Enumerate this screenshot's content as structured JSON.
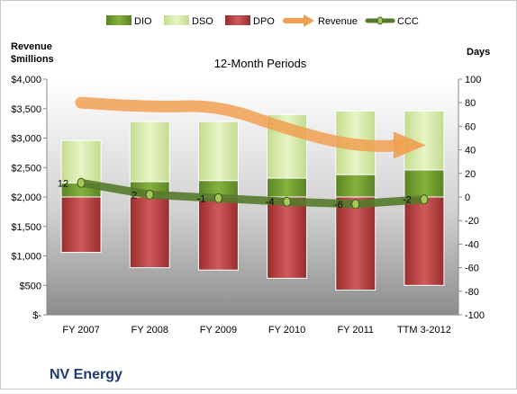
{
  "chart_data": {
    "type": "bar",
    "company": "NV Energy",
    "subtitle": "12-Month Periods",
    "y_left_label_line1": "Revenue",
    "y_left_label_line2": "$millions",
    "y_right_label": "Days",
    "y_left_ticks": [
      "$-",
      "$500",
      "$1,000",
      "$1,500",
      "$2,000",
      "$2,500",
      "$3,000",
      "$3,500",
      "$4,000"
    ],
    "y_right_ticks": [
      "-100",
      "-80",
      "-60",
      "-40",
      "-20",
      "0",
      "20",
      "40",
      "60",
      "80",
      "100"
    ],
    "y_left_lim": [
      0,
      4000
    ],
    "y_right_lim": [
      -100,
      100
    ],
    "legend_position": "top",
    "categories": [
      "FY 2007",
      "FY 2008",
      "FY 2009",
      "FY 2010",
      "FY 2011",
      "TTM 3-2012"
    ],
    "series": [
      {
        "name": "DIO",
        "axis": "right",
        "type": "stacked-bar",
        "color": "#6d9a2e",
        "values": [
          12,
          13,
          14,
          16,
          19,
          23
        ]
      },
      {
        "name": "DSO",
        "axis": "right",
        "type": "stacked-bar",
        "color": "#d6e9a8",
        "values": [
          36,
          51,
          50,
          54,
          54,
          50
        ]
      },
      {
        "name": "DPO",
        "axis": "right",
        "type": "bar-below-zero",
        "color": "#b83e3e",
        "values": [
          -47,
          -60,
          -62,
          -69,
          -79,
          -75
        ]
      },
      {
        "name": "Revenue",
        "axis": "left",
        "type": "arrow-line",
        "color": "#f0a050",
        "values": [
          3600,
          3520,
          3560,
          3150,
          2850,
          2880
        ]
      },
      {
        "name": "CCC",
        "axis": "right",
        "type": "line",
        "color": "#557a2b",
        "values": [
          12,
          2,
          -1,
          -4,
          -6,
          -2
        ],
        "labels": [
          "12",
          "2",
          "-1",
          "-4",
          "-6",
          "-2"
        ]
      }
    ]
  }
}
